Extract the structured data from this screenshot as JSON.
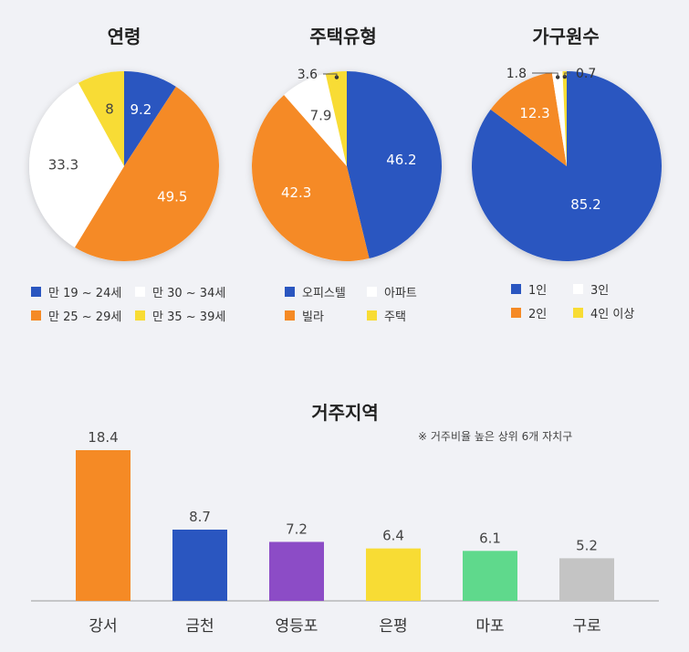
{
  "colors": {
    "blue": "#2a56c0",
    "orange": "#f58a25",
    "white": "#ffffff",
    "yellow": "#f8dc34",
    "purple": "#8c4cc6",
    "green": "#5fd98c",
    "gray": "#c4c4c4"
  },
  "chart_data": [
    {
      "type": "pie",
      "title": "연령",
      "slices": [
        {
          "label": "만 19 ~ 24세",
          "value": 9.2,
          "color": "blue",
          "text": "9.2"
        },
        {
          "label": "만 25 ~ 29세",
          "value": 49.5,
          "color": "orange",
          "text": "49.5"
        },
        {
          "label": "만 30 ~ 34세",
          "value": 33.3,
          "color": "white",
          "text": "33.3"
        },
        {
          "label": "만 35 ~ 39세",
          "value": 8,
          "color": "yellow",
          "text": "8"
        }
      ],
      "legend": [
        "만 19 ~ 24세",
        "만 30 ~ 34세",
        "만 25 ~ 29세",
        "만 35 ~ 39세"
      ]
    },
    {
      "type": "pie",
      "title": "주택유형",
      "slices": [
        {
          "label": "오피스텔",
          "value": 46.2,
          "color": "blue",
          "text": "46.2"
        },
        {
          "label": "빌라",
          "value": 42.3,
          "color": "orange",
          "text": "42.3"
        },
        {
          "label": "아파트",
          "value": 7.9,
          "color": "white",
          "text": "7.9"
        },
        {
          "label": "주택",
          "value": 3.6,
          "color": "yellow",
          "text": "3.6"
        }
      ],
      "legend": [
        "오피스텔",
        "아파트",
        "빌라",
        "주택"
      ]
    },
    {
      "type": "pie",
      "title": "가구원수",
      "slices": [
        {
          "label": "1인",
          "value": 85.2,
          "color": "blue",
          "text": "85.2"
        },
        {
          "label": "2인",
          "value": 12.3,
          "color": "orange",
          "text": "12.3"
        },
        {
          "label": "3인",
          "value": 1.8,
          "color": "white",
          "text": "1.8"
        },
        {
          "label": "4인 이상",
          "value": 0.7,
          "color": "yellow",
          "text": "0.7"
        }
      ],
      "legend": [
        "1인",
        "3인",
        "2인",
        "4인 이상"
      ]
    },
    {
      "type": "bar",
      "title": "거주지역",
      "note": "※ 거주비율 높은 상위 6개 자치구",
      "categories": [
        "강서",
        "금천",
        "영등포",
        "은평",
        "마포",
        "구로"
      ],
      "values": [
        18.4,
        8.7,
        7.2,
        6.4,
        6.1,
        5.2
      ],
      "labels": [
        "18.4",
        "8.7",
        "7.2",
        "6.4",
        "6.1",
        "5.2"
      ],
      "colors": [
        "orange",
        "blue",
        "purple",
        "yellow",
        "green",
        "gray"
      ]
    }
  ]
}
